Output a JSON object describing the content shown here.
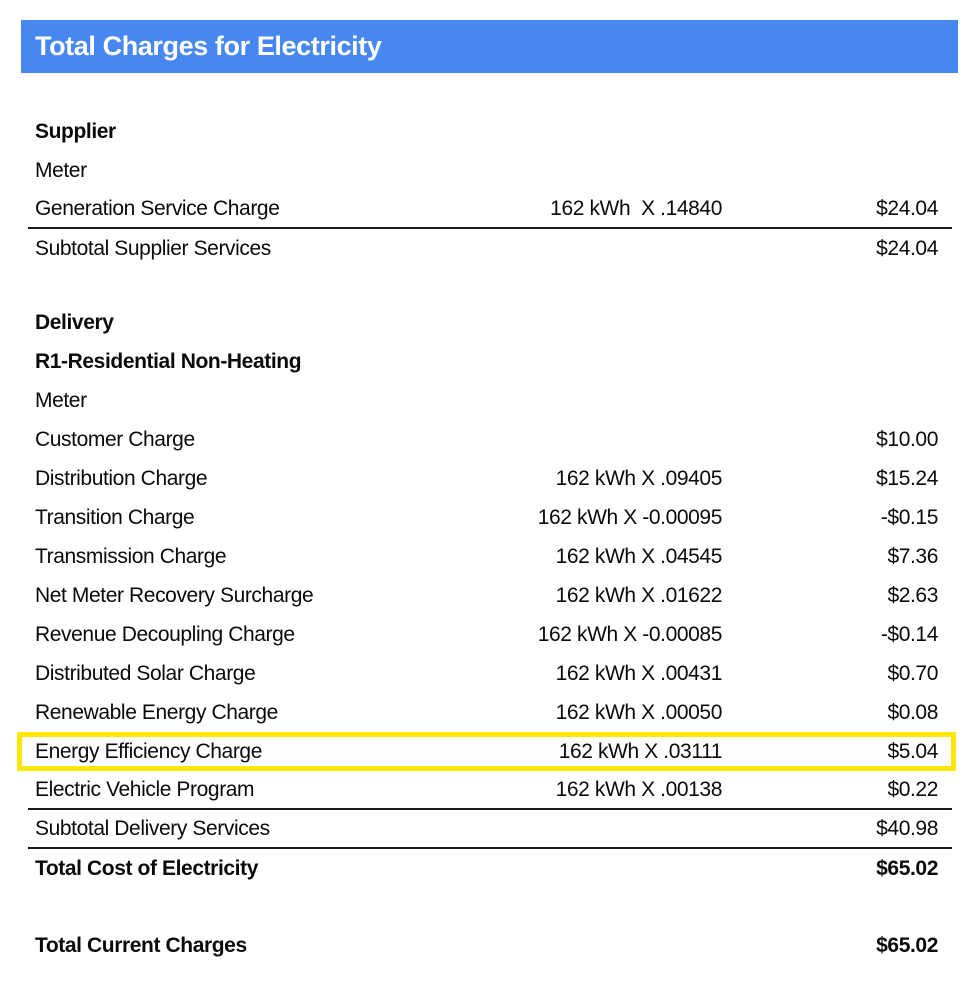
{
  "colors": {
    "header_bg": "#4687F0",
    "header_text": "#FFFFFF",
    "highlight_border": "#FFE705",
    "text": "#0A0A0A"
  },
  "header": {
    "title": "Total Charges for Electricity"
  },
  "supplier": {
    "section_title": "Supplier",
    "meter_label": "Meter",
    "rows": [
      {
        "label": "Generation Service Charge",
        "calc": "162 kWh  X .14840",
        "amount": "$24.04"
      }
    ],
    "subtotal": {
      "label": "Subtotal Supplier Services",
      "amount": "$24.04"
    }
  },
  "delivery": {
    "section_title": "Delivery",
    "rate_class": "R1-Residential Non-Heating",
    "meter_label": "Meter",
    "rows": [
      {
        "label": "Customer Charge",
        "calc": "",
        "amount": "$10.00"
      },
      {
        "label": "Distribution Charge",
        "calc": "162 kWh X .09405",
        "amount": "$15.24"
      },
      {
        "label": "Transition Charge",
        "calc": "162 kWh X -0.00095",
        "amount": "-$0.15"
      },
      {
        "label": "Transmission Charge",
        "calc": "162 kWh X .04545",
        "amount": "$7.36"
      },
      {
        "label": "Net Meter Recovery Surcharge",
        "calc": "162 kWh X .01622",
        "amount": "$2.63"
      },
      {
        "label": "Revenue Decoupling Charge",
        "calc": "162 kWh X -0.00085",
        "amount": "-$0.14"
      },
      {
        "label": "Distributed Solar Charge",
        "calc": "162 kWh X .00431",
        "amount": "$0.70"
      },
      {
        "label": "Renewable Energy Charge",
        "calc": "162 kWh X .00050",
        "amount": "$0.08"
      },
      {
        "label": "Energy Efficiency Charge",
        "calc": "162 kWh X .03111",
        "amount": "$5.04",
        "highlighted": true
      },
      {
        "label": "Electric Vehicle Program",
        "calc": "162 kWh X .00138",
        "amount": "$0.22"
      }
    ],
    "subtotal": {
      "label": "Subtotal Delivery Services",
      "amount": "$40.98"
    }
  },
  "totals": {
    "total_cost": {
      "label": "Total Cost of Electricity",
      "amount": "$65.02"
    },
    "total_current": {
      "label": "Total Current Charges",
      "amount": "$65.02"
    }
  }
}
